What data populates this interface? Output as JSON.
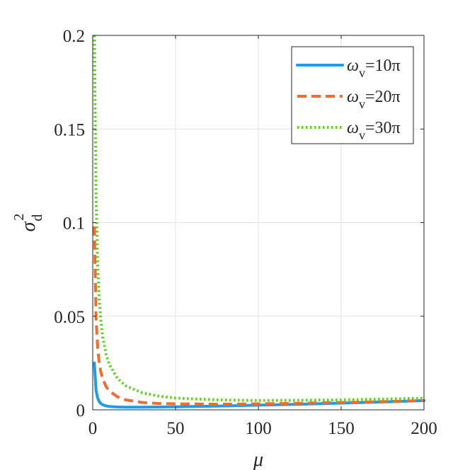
{
  "chart_data": {
    "type": "line",
    "title": "",
    "xlabel": "μ",
    "ylabel": {
      "symbol": "σ",
      "superscript": "2",
      "subscript": "d"
    },
    "xlim": [
      0,
      200
    ],
    "ylim": [
      0,
      0.2
    ],
    "xticks": [
      0,
      50,
      100,
      150,
      200
    ],
    "xtick_labels": [
      "0",
      "50",
      "100",
      "150",
      "200"
    ],
    "yticks": [
      0,
      0.05,
      0.1,
      0.15,
      0.2
    ],
    "ytick_labels": [
      "0",
      "0.05",
      "0.1",
      "0.15",
      "0.2"
    ],
    "grid": true,
    "legend_position": "top-right",
    "x": [
      1,
      2,
      3,
      4,
      5,
      6,
      8,
      10,
      15,
      20,
      30,
      40,
      50,
      75,
      100,
      125,
      150,
      175,
      200
    ],
    "series": [
      {
        "name_symbol": "ω",
        "name_subscript": "v",
        "name_value": "=10π",
        "color": "#1a9cf0",
        "style": "solid",
        "values": [
          0.025,
          0.0105,
          0.0062,
          0.0043,
          0.0033,
          0.0027,
          0.0021,
          0.0018,
          0.0015,
          0.0014,
          0.0014,
          0.0015,
          0.0016,
          0.002,
          0.0025,
          0.003,
          0.0036,
          0.0042,
          0.0049
        ]
      },
      {
        "name_symbol": "ω",
        "name_subscript": "v",
        "name_value": "=20π",
        "color": "#f46b2b",
        "style": "dashed",
        "values": [
          0.098,
          0.049,
          0.033,
          0.0246,
          0.0198,
          0.0166,
          0.0125,
          0.0101,
          0.0069,
          0.0053,
          0.0039,
          0.0034,
          0.0032,
          0.003,
          0.0032,
          0.0035,
          0.0039,
          0.0044,
          0.0049
        ]
      },
      {
        "name_symbol": "ω",
        "name_subscript": "v",
        "name_value": "=30π",
        "color": "#5fd01f",
        "style": "dotted",
        "values": [
          0.2,
          0.115,
          0.077,
          0.058,
          0.047,
          0.039,
          0.03,
          0.0242,
          0.0167,
          0.0128,
          0.0091,
          0.0073,
          0.0063,
          0.0053,
          0.005,
          0.0051,
          0.0053,
          0.0057,
          0.0062
        ]
      }
    ]
  }
}
